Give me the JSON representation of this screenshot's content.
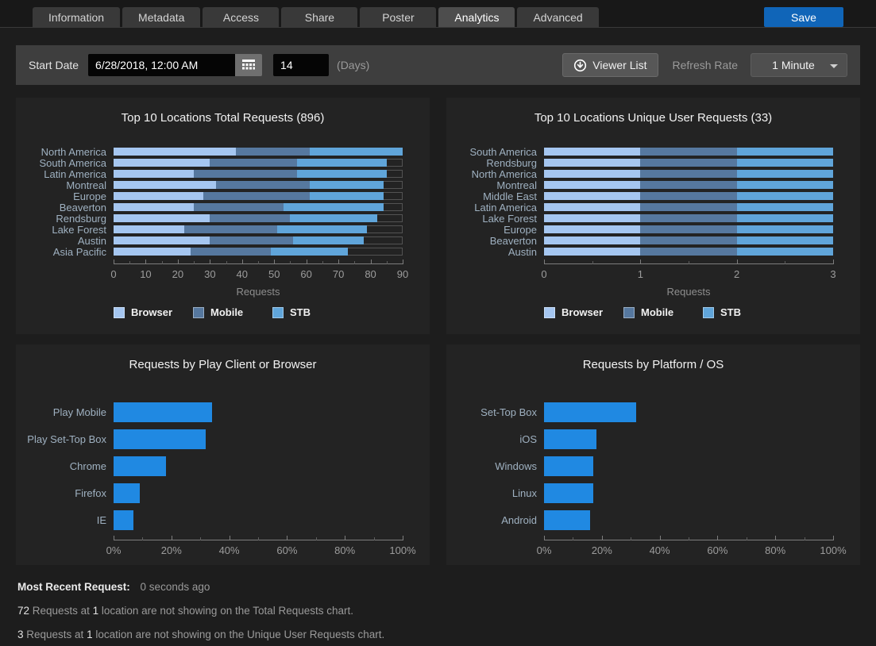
{
  "tabs": {
    "items": [
      {
        "label": "Information",
        "active": false
      },
      {
        "label": "Metadata",
        "active": false
      },
      {
        "label": "Access",
        "active": false
      },
      {
        "label": "Share",
        "active": false
      },
      {
        "label": "Poster",
        "active": false
      },
      {
        "label": "Analytics",
        "active": true
      },
      {
        "label": "Advanced",
        "active": false
      }
    ],
    "save_label": "Save"
  },
  "toolbar": {
    "start_date_label": "Start Date",
    "start_date_value": "6/28/2018, 12:00 AM",
    "days_value": "14",
    "days_label": "(Days)",
    "viewer_list_label": "Viewer List",
    "refresh_rate_label": "Refresh Rate",
    "refresh_rate_value": "1 Minute"
  },
  "colors": {
    "accent_blue": "#2089e2",
    "save_button": "#1065b8",
    "series_browser": "#a5c6f0",
    "series_mobile": "#56789f",
    "series_stb": "#60a5da",
    "panel_background": "#232323",
    "page_background": "#1d1d1d"
  },
  "chart_data": [
    {
      "type": "bar",
      "orientation": "horizontal-stacked",
      "title": "Top 10 Locations Total Requests (896)",
      "categories": [
        "North America",
        "South America",
        "Latin America",
        "Montreal",
        "Europe",
        "Beaverton",
        "Rendsburg",
        "Lake Forest",
        "Austin",
        "Asia Pacific"
      ],
      "series": [
        {
          "name": "Browser",
          "color": "#a5c6f0",
          "values": [
            38,
            30,
            25,
            32,
            28,
            25,
            30,
            22,
            30,
            24
          ]
        },
        {
          "name": "Mobile",
          "color": "#56789f",
          "values": [
            23,
            27,
            32,
            29,
            33,
            28,
            25,
            29,
            26,
            25
          ]
        },
        {
          "name": "STB",
          "color": "#60a5da",
          "values": [
            29,
            28,
            28,
            23,
            23,
            31,
            27,
            28,
            22,
            24
          ]
        }
      ],
      "totals": [
        90,
        85,
        85,
        84,
        84,
        84,
        82,
        79,
        78,
        73
      ],
      "xlabel": "Requests",
      "xlim": [
        0,
        90
      ],
      "ticks": [
        0,
        10,
        20,
        30,
        40,
        50,
        60,
        70,
        80,
        90
      ],
      "minor_ticks": [
        5,
        15,
        25,
        35,
        45,
        55,
        65,
        75,
        85
      ],
      "tick_suffix": "",
      "legend_position": "bottom"
    },
    {
      "type": "bar",
      "orientation": "horizontal-stacked",
      "title": "Top 10 Locations Unique User Requests (33)",
      "categories": [
        "South America",
        "Rendsburg",
        "North America",
        "Montreal",
        "Middle East",
        "Latin America",
        "Lake Forest",
        "Europe",
        "Beaverton",
        "Austin"
      ],
      "series": [
        {
          "name": "Browser",
          "color": "#a5c6f0",
          "values": [
            1,
            1,
            1,
            1,
            1,
            1,
            1,
            1,
            1,
            1
          ]
        },
        {
          "name": "Mobile",
          "color": "#56789f",
          "values": [
            1,
            1,
            1,
            1,
            1,
            1,
            1,
            1,
            1,
            1
          ]
        },
        {
          "name": "STB",
          "color": "#60a5da",
          "values": [
            1,
            1,
            1,
            1,
            1,
            1,
            1,
            1,
            1,
            1
          ]
        }
      ],
      "totals": [
        3,
        3,
        3,
        3,
        3,
        3,
        3,
        3,
        3,
        3
      ],
      "xlabel": "Requests",
      "xlim": [
        0,
        3
      ],
      "ticks": [
        0,
        1,
        2,
        3
      ],
      "minor_ticks": [
        0.5,
        1.5,
        2.5
      ],
      "tick_suffix": "",
      "legend_position": "bottom"
    },
    {
      "type": "bar",
      "orientation": "horizontal",
      "title": "Requests by Play Client or Browser",
      "categories": [
        "Play Mobile",
        "Play Set-Top Box",
        "Chrome",
        "Firefox",
        "IE"
      ],
      "values": [
        34,
        32,
        18,
        9,
        7
      ],
      "color": "#2089e2",
      "xlabel": "",
      "xlim": [
        0,
        100
      ],
      "ticks": [
        0,
        20,
        40,
        60,
        80,
        100
      ],
      "minor_ticks": [
        10,
        30,
        50,
        70,
        90
      ],
      "tick_suffix": "%"
    },
    {
      "type": "bar",
      "orientation": "horizontal",
      "title": "Requests by Platform / OS",
      "categories": [
        "Set-Top Box",
        "iOS",
        "Windows",
        "Linux",
        "Android"
      ],
      "values": [
        32,
        18,
        17,
        17,
        16
      ],
      "color": "#2089e2",
      "xlabel": "",
      "xlim": [
        0,
        100
      ],
      "ticks": [
        0,
        20,
        40,
        60,
        80,
        100
      ],
      "minor_ticks": [
        10,
        30,
        50,
        70,
        90
      ],
      "tick_suffix": "%"
    }
  ],
  "footer": {
    "recent_label": "Most Recent Request:",
    "recent_value": "0 seconds ago",
    "notices": [
      {
        "segments": [
          {
            "text": "72",
            "strong": true
          },
          {
            "text": " Requests at ",
            "strong": false
          },
          {
            "text": "1",
            "strong": true
          },
          {
            "text": " location are not showing on the Total Requests chart.",
            "strong": false
          }
        ]
      },
      {
        "segments": [
          {
            "text": "3",
            "strong": true
          },
          {
            "text": " Requests at ",
            "strong": false
          },
          {
            "text": "1",
            "strong": true
          },
          {
            "text": " location are not showing on the Unique User Requests chart.",
            "strong": false
          }
        ]
      }
    ]
  }
}
